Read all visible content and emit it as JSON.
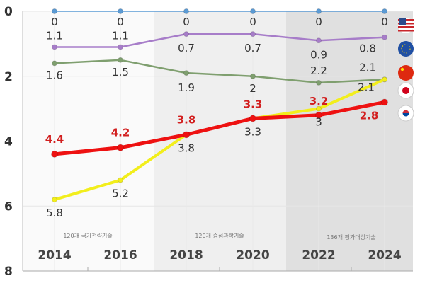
{
  "chart_data": {
    "type": "line",
    "title": "",
    "xlabel": "",
    "ylabel": "",
    "categories": [
      "2014",
      "2016",
      "2018",
      "2020",
      "2022",
      "2024"
    ],
    "ylim": [
      8,
      0
    ],
    "y_axis_reversed": true,
    "y_ticks": [
      "0",
      "2",
      "4",
      "6",
      "8"
    ],
    "grid": true,
    "legend": "right (flag icons)",
    "band_labels": [
      "120개 국가전략기술",
      "120개 중점과학기술",
      "136개 평가대상기술"
    ],
    "series": [
      {
        "flag": "usa-flag",
        "color": "#5b9bd5",
        "values": [
          0,
          0,
          0,
          0,
          0,
          0
        ],
        "labels": [
          "0",
          "0",
          "0",
          "0",
          "0",
          "0"
        ]
      },
      {
        "flag": "eu-flag",
        "color": "#a77dc9",
        "values": [
          1.1,
          1.1,
          0.7,
          0.7,
          0.9,
          0.8
        ],
        "labels": [
          "1.1",
          "1.1",
          "0.7",
          "0.7",
          "0.9",
          "0.8"
        ]
      },
      {
        "flag": "china-flag",
        "color": "#7f9f6f",
        "values": [
          1.6,
          1.5,
          1.9,
          2,
          2.2,
          2.1
        ],
        "labels": [
          "1.6",
          "1.5",
          "1.9",
          "2",
          "2.2",
          "2.1"
        ]
      },
      {
        "flag": "japan-flag",
        "color": "#f2ee1c",
        "values": [
          5.8,
          5.2,
          3.8,
          3.3,
          3,
          2.1
        ],
        "labels": [
          "5.8",
          "5.2",
          "3.8",
          "3.3",
          "3",
          "2.1"
        ]
      },
      {
        "flag": "korea-flag",
        "color": "#ee1111",
        "values": [
          4.4,
          4.2,
          3.8,
          3.3,
          3.2,
          2.8
        ],
        "labels": [
          "4.4",
          "4.2",
          "3.8",
          "3.3",
          "3.2",
          "2.8"
        ]
      }
    ]
  }
}
